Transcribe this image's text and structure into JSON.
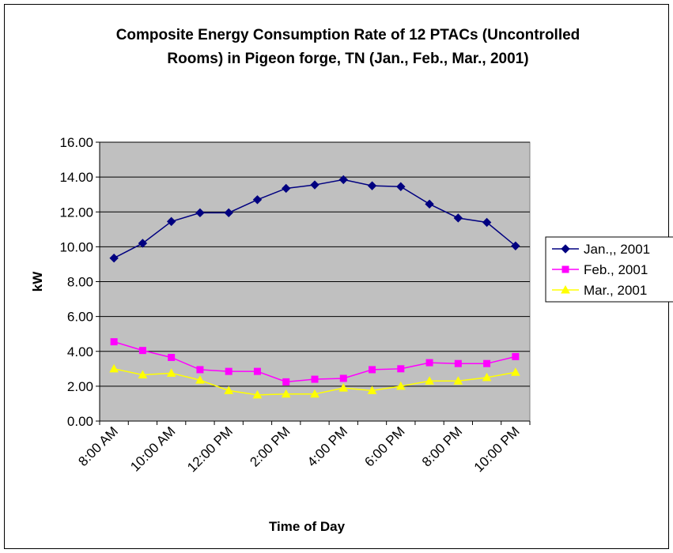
{
  "chart_data": {
    "type": "line",
    "title": "Composite Energy Consumption Rate of 12 PTACs (Uncontrolled Rooms) in Pigeon forge, TN (Jan., Feb., Mar., 2001)",
    "x_label": "Time of Day",
    "y_label": "kW",
    "categories": [
      "8:00 AM",
      null,
      "10:00 AM",
      null,
      "12:00 PM",
      null,
      "2:00 PM",
      null,
      "4:00 PM",
      null,
      "6:00 PM",
      null,
      "8:00 PM",
      null,
      "10:00 PM"
    ],
    "series": [
      {
        "name": "Jan.,, 2001",
        "color": "#000080",
        "marker": "diamond",
        "values": [
          9.35,
          10.2,
          11.45,
          11.95,
          11.95,
          12.7,
          13.35,
          13.55,
          13.85,
          13.5,
          13.45,
          12.45,
          11.65,
          11.4,
          10.05
        ]
      },
      {
        "name": "Feb., 2001",
        "color": "#FF00FF",
        "marker": "square",
        "values": [
          4.55,
          4.05,
          3.65,
          2.95,
          2.85,
          2.85,
          2.25,
          2.4,
          2.45,
          2.95,
          3.0,
          3.35,
          3.3,
          3.3,
          3.7
        ]
      },
      {
        "name": "Mar., 2001",
        "color": "#FFFF00",
        "marker": "triangle",
        "values": [
          3.0,
          2.65,
          2.75,
          2.35,
          1.75,
          1.5,
          1.55,
          1.55,
          1.9,
          1.75,
          2.0,
          2.3,
          2.3,
          2.5,
          2.8
        ]
      }
    ],
    "ylim": [
      0,
      16
    ],
    "yticks": [
      {
        "value": 0,
        "label": "0.00"
      },
      {
        "value": 2,
        "label": "2.00"
      },
      {
        "value": 4,
        "label": "4.00"
      },
      {
        "value": 6,
        "label": "6.00"
      },
      {
        "value": 8,
        "label": "8.00"
      },
      {
        "value": 10,
        "label": "10.00"
      },
      {
        "value": 12,
        "label": "12.00"
      },
      {
        "value": 14,
        "label": "14.00"
      },
      {
        "value": 16,
        "label": "16.00"
      }
    ],
    "grid": true,
    "plot_background": "#C0C0C0",
    "legend": "right"
  }
}
